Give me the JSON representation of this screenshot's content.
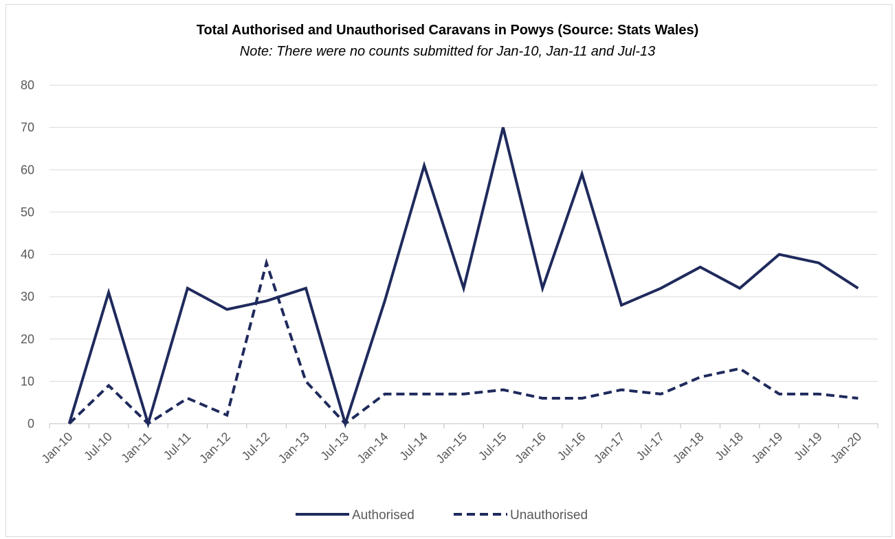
{
  "chart_data": {
    "type": "line",
    "title": "Total Authorised and Unauthorised Caravans in Powys (Source: Stats Wales)",
    "subtitle": "Note: There were no counts submitted for Jan-10, Jan-11 and Jul-13",
    "xlabel": "",
    "ylabel": "",
    "ylim": [
      0,
      80
    ],
    "yticks": [
      0,
      10,
      20,
      30,
      40,
      50,
      60,
      70,
      80
    ],
    "grid": true,
    "legend_position": "bottom",
    "categories": [
      "Jan-10",
      "Jul-10",
      "Jan-11",
      "Jul-11",
      "Jan-12",
      "Jul-12",
      "Jan-13",
      "Jul-13",
      "Jan-14",
      "Jul-14",
      "Jan-15",
      "Jul-15",
      "Jan-16",
      "Jul-16",
      "Jan-17",
      "Jul-17",
      "Jan-18",
      "Jul-18",
      "Jan-19",
      "Jul-19",
      "Jan-20"
    ],
    "series": [
      {
        "name": "Authorised",
        "style": "solid",
        "color": "#1f2a5c",
        "values": [
          0,
          31,
          0,
          32,
          27,
          29,
          32,
          0,
          29,
          61,
          32,
          70,
          32,
          59,
          28,
          32,
          37,
          32,
          40,
          38,
          32
        ]
      },
      {
        "name": "Unauthorised",
        "style": "dashed",
        "color": "#1f2a5c",
        "values": [
          0,
          9,
          0,
          6,
          2,
          38,
          10,
          0,
          7,
          7,
          7,
          8,
          6,
          6,
          8,
          7,
          11,
          13,
          7,
          7,
          6
        ]
      }
    ]
  }
}
